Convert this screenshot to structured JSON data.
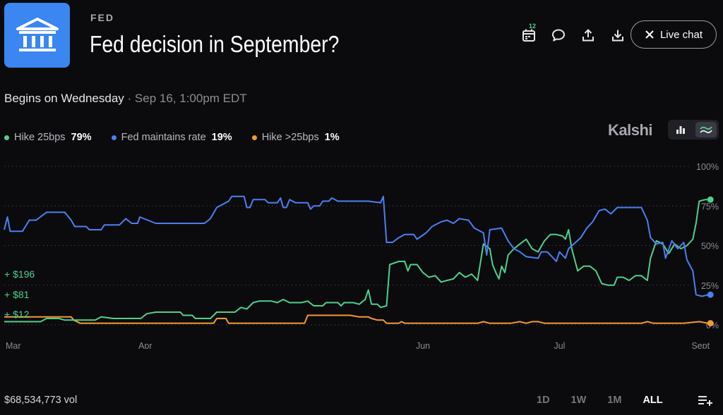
{
  "header": {
    "category": "FED",
    "title": "Fed decision in September?",
    "calendar_badge": "12",
    "live_chat_label": "Live chat"
  },
  "schedule": {
    "begins": "Begins on Wednesday",
    "separator": " · ",
    "datetime": "Sep 16, 1:00pm EDT"
  },
  "brand": "Kalshi",
  "legend": [
    {
      "name": "Hike 25bps",
      "pct": "79%",
      "color": "#4fd08a"
    },
    {
      "name": "Fed maintains rate",
      "pct": "19%",
      "color": "#4d7ff0"
    },
    {
      "name": "Hike >25bps",
      "pct": "1%",
      "color": "#f39a2e"
    }
  ],
  "payouts": [
    "+ $196",
    "+ $81",
    "+ $12"
  ],
  "footer": {
    "volume": "$68,534,773 vol",
    "ranges": [
      "1D",
      "1W",
      "1M",
      "ALL"
    ],
    "active_range": "ALL"
  },
  "chart_data": {
    "type": "line",
    "x_tick_labels": [
      "Mar",
      "Apr",
      "Jun",
      "Jul",
      "Sept"
    ],
    "x_tick_days": [
      0,
      31,
      92,
      122,
      153
    ],
    "x_range": [
      0,
      157
    ],
    "y_tick_labels": [
      "100%",
      "75%",
      "50%",
      "25%",
      "0%"
    ],
    "y_ticks": [
      100,
      75,
      50,
      25,
      0
    ],
    "ylim": [
      0,
      100
    ],
    "grid": true,
    "series": [
      {
        "name": "Fed maintains rate",
        "color": "#4d7ff0",
        "points": [
          [
            0,
            60
          ],
          [
            0.7,
            68
          ],
          [
            1.3,
            59
          ],
          [
            4,
            59
          ],
          [
            5.5,
            66
          ],
          [
            7,
            66
          ],
          [
            9.3,
            71
          ],
          [
            13.3,
            71
          ],
          [
            14.7,
            66
          ],
          [
            15.5,
            62
          ],
          [
            18,
            62
          ],
          [
            18.7,
            60
          ],
          [
            21.3,
            60
          ],
          [
            22,
            63
          ],
          [
            25.3,
            63
          ],
          [
            26.7,
            67
          ],
          [
            28,
            64
          ],
          [
            29.3,
            64
          ],
          [
            29.8,
            68
          ],
          [
            33.3,
            64
          ],
          [
            44,
            64
          ],
          [
            45.3,
            67
          ],
          [
            46.7,
            74
          ],
          [
            48,
            76
          ],
          [
            49.3,
            78
          ],
          [
            50,
            81
          ],
          [
            52.7,
            81
          ],
          [
            53.3,
            74
          ],
          [
            54,
            74
          ],
          [
            54.7,
            79
          ],
          [
            57.3,
            79
          ],
          [
            58,
            77
          ],
          [
            60,
            77
          ],
          [
            60.7,
            80
          ],
          [
            61.3,
            74
          ],
          [
            62,
            74
          ],
          [
            62.7,
            79
          ],
          [
            64,
            77
          ],
          [
            66.7,
            77
          ],
          [
            67.3,
            73
          ],
          [
            68,
            75
          ],
          [
            69.3,
            75
          ],
          [
            70,
            78
          ],
          [
            71.3,
            78
          ],
          [
            72,
            80
          ],
          [
            73.3,
            78
          ],
          [
            80,
            78
          ],
          [
            82.7,
            77
          ],
          [
            83.3,
            81
          ],
          [
            84,
            52
          ],
          [
            85.3,
            52
          ],
          [
            86.7,
            55
          ],
          [
            88,
            57
          ],
          [
            90,
            57
          ],
          [
            90.7,
            54
          ],
          [
            92.7,
            58
          ],
          [
            94,
            62
          ],
          [
            96,
            65
          ],
          [
            97.3,
            66
          ],
          [
            98.7,
            64
          ],
          [
            100,
            67
          ],
          [
            102,
            66
          ],
          [
            103.3,
            61
          ],
          [
            105.3,
            58
          ],
          [
            106,
            44
          ],
          [
            106.7,
            60
          ],
          [
            109.3,
            61
          ],
          [
            110.7,
            53
          ],
          [
            112,
            48
          ],
          [
            113.3,
            46
          ],
          [
            114.7,
            43
          ],
          [
            117.3,
            42
          ],
          [
            118,
            46
          ],
          [
            119.3,
            46
          ],
          [
            120,
            44
          ],
          [
            121.3,
            40
          ],
          [
            122,
            46
          ],
          [
            123.3,
            42
          ],
          [
            124,
            48
          ],
          [
            126.7,
            55
          ],
          [
            128,
            61
          ],
          [
            129.3,
            65
          ],
          [
            130.7,
            72
          ],
          [
            132,
            73
          ],
          [
            133.3,
            70
          ],
          [
            134.7,
            74
          ],
          [
            140,
            74
          ],
          [
            141.3,
            66
          ],
          [
            142,
            55
          ],
          [
            143.3,
            51
          ],
          [
            144.7,
            52
          ],
          [
            145.3,
            42
          ],
          [
            146.7,
            53
          ],
          [
            148,
            48
          ],
          [
            149.3,
            52
          ],
          [
            150,
            41
          ],
          [
            151.3,
            34
          ],
          [
            152,
            19
          ],
          [
            153.3,
            18
          ],
          [
            154.7,
            19
          ]
        ],
        "end_marker": true
      },
      {
        "name": "Hike 25bps",
        "color": "#4fd08a",
        "points": [
          [
            0,
            2
          ],
          [
            8,
            2
          ],
          [
            9.3,
            4
          ],
          [
            12,
            4
          ],
          [
            13.3,
            3
          ],
          [
            20,
            3
          ],
          [
            21.3,
            5
          ],
          [
            24,
            4
          ],
          [
            26,
            4
          ],
          [
            30,
            4
          ],
          [
            31.3,
            7
          ],
          [
            33.3,
            8
          ],
          [
            38.7,
            8
          ],
          [
            39.3,
            6
          ],
          [
            41.3,
            6
          ],
          [
            42,
            4
          ],
          [
            45.3,
            4
          ],
          [
            46.7,
            8
          ],
          [
            50.7,
            8
          ],
          [
            52,
            11
          ],
          [
            53.3,
            10
          ],
          [
            54.7,
            14
          ],
          [
            56,
            15
          ],
          [
            58.7,
            15
          ],
          [
            60,
            14
          ],
          [
            61.3,
            16
          ],
          [
            62.7,
            14
          ],
          [
            64,
            14
          ],
          [
            65.3,
            14
          ],
          [
            66.7,
            15
          ],
          [
            68,
            12
          ],
          [
            70,
            12
          ],
          [
            70.7,
            14
          ],
          [
            73.3,
            14
          ],
          [
            74,
            12
          ],
          [
            74.7,
            14
          ],
          [
            76.7,
            14
          ],
          [
            78,
            13
          ],
          [
            79.3,
            16
          ],
          [
            80,
            22
          ],
          [
            80.7,
            13
          ],
          [
            82,
            13
          ],
          [
            82.7,
            11
          ],
          [
            84,
            12
          ],
          [
            84.7,
            38
          ],
          [
            86.7,
            40
          ],
          [
            88,
            40
          ],
          [
            88.7,
            34
          ],
          [
            89.3,
            38
          ],
          [
            90.7,
            38
          ],
          [
            92,
            33
          ],
          [
            93.3,
            30
          ],
          [
            94.7,
            31
          ],
          [
            96,
            27
          ],
          [
            97.3,
            28
          ],
          [
            98.7,
            29
          ],
          [
            100,
            33
          ],
          [
            101.3,
            30
          ],
          [
            102.7,
            32
          ],
          [
            104,
            28
          ],
          [
            105.3,
            51
          ],
          [
            106.7,
            48
          ],
          [
            107.3,
            38
          ],
          [
            108,
            33
          ],
          [
            108.7,
            29
          ],
          [
            109.3,
            37
          ],
          [
            110,
            33
          ],
          [
            110.7,
            44
          ],
          [
            112,
            48
          ],
          [
            113.3,
            51
          ],
          [
            114.7,
            54
          ],
          [
            116,
            48
          ],
          [
            117.3,
            46
          ],
          [
            118.7,
            53
          ],
          [
            120,
            57
          ],
          [
            121.3,
            57
          ],
          [
            122.7,
            56
          ],
          [
            123.3,
            54
          ],
          [
            124,
            60
          ],
          [
            124.7,
            48
          ],
          [
            126,
            34
          ],
          [
            127.3,
            37
          ],
          [
            128.7,
            37
          ],
          [
            130,
            34
          ],
          [
            131.3,
            26
          ],
          [
            132.7,
            25
          ],
          [
            134,
            25
          ],
          [
            134.7,
            30
          ],
          [
            136,
            30
          ],
          [
            137.3,
            28
          ],
          [
            138.7,
            31
          ],
          [
            140,
            31
          ],
          [
            141.3,
            28
          ],
          [
            142,
            42
          ],
          [
            143.3,
            53
          ],
          [
            144.7,
            51
          ],
          [
            146,
            45
          ],
          [
            147.3,
            51
          ],
          [
            148.7,
            48
          ],
          [
            150,
            50
          ],
          [
            151.3,
            54
          ],
          [
            152,
            64
          ],
          [
            152.7,
            78
          ],
          [
            154,
            79
          ],
          [
            154.7,
            79
          ]
        ],
        "end_marker": true
      },
      {
        "name": "Hike >25bps",
        "color": "#f39a2e",
        "points": [
          [
            0,
            5
          ],
          [
            14.7,
            5
          ],
          [
            15.3,
            3
          ],
          [
            16.7,
            1
          ],
          [
            20,
            1
          ],
          [
            22,
            1
          ],
          [
            24,
            1
          ],
          [
            29.3,
            1
          ],
          [
            36,
            1
          ],
          [
            42.7,
            1
          ],
          [
            46,
            1
          ],
          [
            46.7,
            4
          ],
          [
            48.7,
            4
          ],
          [
            49.3,
            1
          ],
          [
            57.3,
            1
          ],
          [
            66,
            1
          ],
          [
            66.7,
            6
          ],
          [
            69.3,
            6
          ],
          [
            72,
            6
          ],
          [
            74,
            6
          ],
          [
            76,
            6
          ],
          [
            78,
            5
          ],
          [
            80,
            5
          ],
          [
            80.7,
            4
          ],
          [
            82,
            3
          ],
          [
            83.3,
            3
          ],
          [
            84,
            1
          ],
          [
            86.7,
            1
          ],
          [
            87.3,
            2
          ],
          [
            88,
            1
          ],
          [
            100,
            1
          ],
          [
            104,
            1
          ],
          [
            105.3,
            2
          ],
          [
            106.7,
            1
          ],
          [
            111.3,
            1
          ],
          [
            113.3,
            2
          ],
          [
            114.7,
            1
          ],
          [
            116,
            2
          ],
          [
            117.3,
            2
          ],
          [
            118.7,
            1
          ],
          [
            133.3,
            1
          ],
          [
            140,
            1
          ],
          [
            141.3,
            2
          ],
          [
            142.7,
            1
          ],
          [
            149.3,
            1
          ],
          [
            152.7,
            2
          ],
          [
            154.7,
            1
          ]
        ],
        "end_marker": true
      }
    ]
  }
}
